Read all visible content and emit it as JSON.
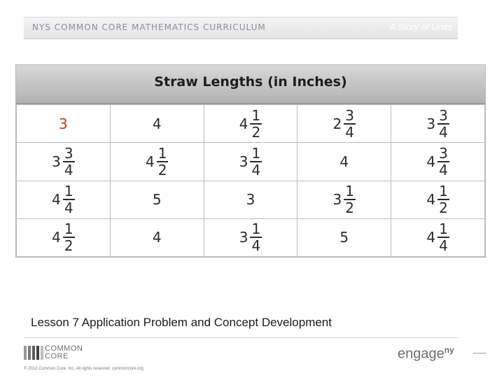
{
  "header": {
    "left": "NYS COMMON CORE MATHEMATICS CURRICULUM",
    "right": "A Story of Units"
  },
  "table": {
    "title": "Straw Lengths (in Inches)",
    "rows": [
      [
        {
          "whole": "3",
          "color": "orange"
        },
        {
          "whole": "4",
          "color": "black"
        },
        {
          "whole": "4",
          "num": "1",
          "den": "2",
          "color": "black"
        },
        {
          "whole": "2",
          "num": "3",
          "den": "4",
          "color": "black"
        },
        {
          "whole": "3",
          "num": "3",
          "den": "4",
          "color": "black"
        }
      ],
      [
        {
          "whole": "3",
          "num": "3",
          "den": "4",
          "color": "black"
        },
        {
          "whole": "4",
          "num": "1",
          "den": "2",
          "color": "black"
        },
        {
          "whole": "3",
          "num": "1",
          "den": "4",
          "color": "black"
        },
        {
          "whole": "4",
          "color": "black"
        },
        {
          "whole": "4",
          "num": "3",
          "den": "4",
          "color": "black"
        }
      ],
      [
        {
          "whole": "4",
          "num": "1",
          "den": "4",
          "color": "black"
        },
        {
          "whole": "5",
          "color": "black"
        },
        {
          "whole": "3",
          "color": "black"
        },
        {
          "whole": "3",
          "num": "1",
          "den": "2",
          "color": "black"
        },
        {
          "whole": "4",
          "num": "1",
          "den": "2",
          "color": "black"
        }
      ],
      [
        {
          "whole": "4",
          "num": "1",
          "den": "2",
          "color": "black"
        },
        {
          "whole": "4",
          "color": "black"
        },
        {
          "whole": "3",
          "num": "1",
          "den": "4",
          "color": "black"
        },
        {
          "whole": "5",
          "color": "black"
        },
        {
          "whole": "4",
          "num": "1",
          "den": "4",
          "color": "black"
        }
      ]
    ]
  },
  "lesson_title": "Lesson 7 Application Problem and Concept Development",
  "footer": {
    "logo_text_line1": "COMMON",
    "logo_text_line2": "CORE",
    "copyright": "© 2012 Common Core, Inc. All rights reserved. commoncore.org",
    "brand": "engage",
    "brand_sup": "ny"
  },
  "colors": {
    "accent_orange": "#c0392b"
  }
}
